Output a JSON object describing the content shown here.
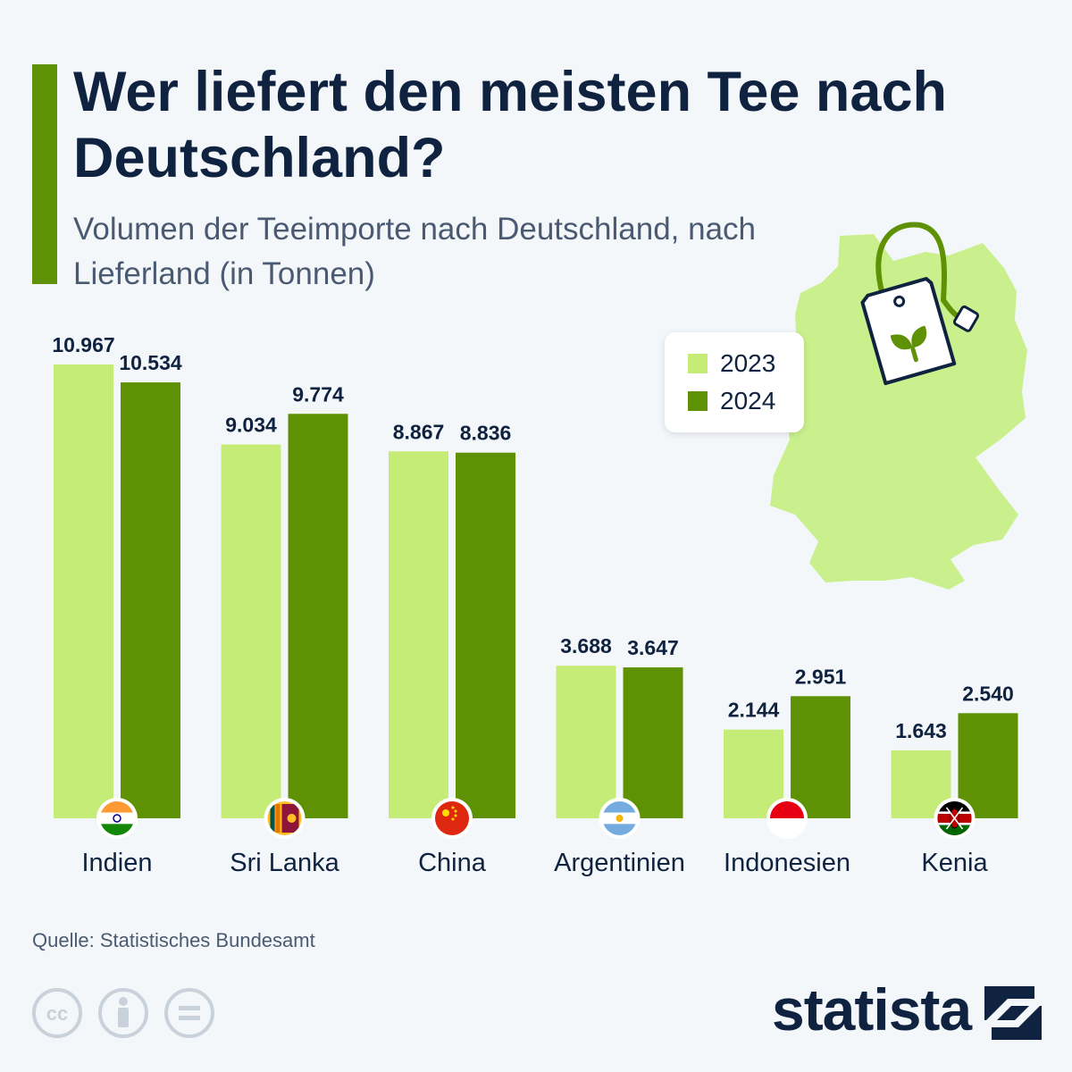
{
  "header": {
    "title": "Wer liefert den meisten Tee nach Deutschland?",
    "subtitle": "Volumen der Teeimporte nach Deutschland, nach Lieferland (in Tonnen)"
  },
  "colors": {
    "series_2023": "#c4ec77",
    "series_2024": "#5e9204",
    "map": "#c9f08d",
    "text": "#0f2340",
    "accent": "#5e9204"
  },
  "chart_data": {
    "type": "bar",
    "title": "Wer liefert den meisten Tee nach Deutschland?",
    "subtitle": "Volumen der Teeimporte nach Deutschland, nach Lieferland (in Tonnen)",
    "categories": [
      "Indien",
      "Sri Lanka",
      "China",
      "Argentinien",
      "Indonesien",
      "Kenia"
    ],
    "series": [
      {
        "name": "2023",
        "values": [
          10967,
          9034,
          8867,
          3688,
          2144,
          1643
        ],
        "labels": [
          "10.967",
          "9.034",
          "8.867",
          "3.688",
          "2.144",
          "1.643"
        ]
      },
      {
        "name": "2024",
        "values": [
          10534,
          9774,
          8836,
          3647,
          2951,
          2540
        ],
        "labels": [
          "10.534",
          "9.774",
          "8.836",
          "3.647",
          "2.951",
          "2.540"
        ]
      }
    ],
    "flags": [
      "india-flag-icon",
      "sri-lanka-flag-icon",
      "china-flag-icon",
      "argentina-flag-icon",
      "indonesia-flag-icon",
      "kenya-flag-icon"
    ],
    "xlabel": "",
    "ylabel": "Tonnen",
    "ylim": [
      0,
      11500
    ],
    "grid": false,
    "legend_position": "top-right"
  },
  "legend": {
    "items": [
      "2023",
      "2024"
    ]
  },
  "footer": {
    "source": "Quelle: Statistisches Bundesamt",
    "brand": "statista",
    "license_icons": [
      "cc-icon",
      "attribution-icon",
      "no-derivatives-icon"
    ]
  }
}
